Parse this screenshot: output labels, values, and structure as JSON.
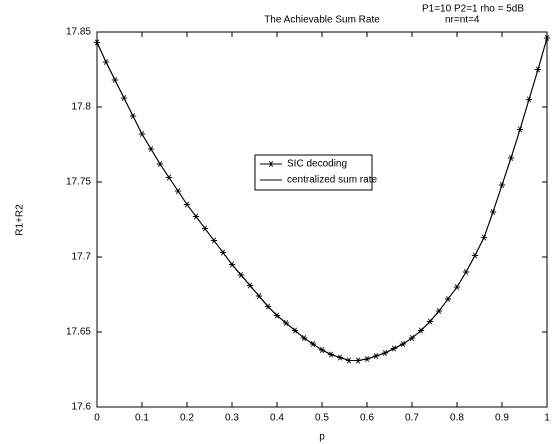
{
  "chart_data": {
    "type": "line",
    "title": "The Achievable Sum Rate",
    "annotations": [
      "P1=10 P2=1 rho = 5dB",
      "nr=nt=4"
    ],
    "x_label": "p",
    "y_label": "R1+R2",
    "x": [
      0,
      0.02,
      0.04,
      0.06,
      0.08,
      0.1,
      0.12,
      0.14,
      0.16,
      0.18,
      0.2,
      0.22,
      0.24,
      0.26,
      0.28,
      0.3,
      0.32,
      0.34,
      0.36,
      0.38,
      0.4,
      0.42,
      0.44,
      0.46,
      0.48,
      0.5,
      0.52,
      0.54,
      0.56,
      0.58,
      0.6,
      0.62,
      0.64,
      0.66,
      0.68,
      0.7,
      0.72,
      0.74,
      0.76,
      0.78,
      0.8,
      0.82,
      0.84,
      0.86,
      0.88,
      0.9,
      0.92,
      0.94,
      0.96,
      0.98,
      1
    ],
    "series": [
      {
        "name": "SIC decoding",
        "color": "#000000",
        "marker": "star",
        "values": [
          17.843,
          17.83,
          17.818,
          17.806,
          17.794,
          17.782,
          17.772,
          17.762,
          17.753,
          17.744,
          17.735,
          17.727,
          17.719,
          17.711,
          17.703,
          17.695,
          17.688,
          17.681,
          17.674,
          17.667,
          17.661,
          17.656,
          17.651,
          17.646,
          17.642,
          17.638,
          17.635,
          17.633,
          17.631,
          17.631,
          17.632,
          17.634,
          17.636,
          17.639,
          17.642,
          17.646,
          17.651,
          17.657,
          17.664,
          17.672,
          17.68,
          17.69,
          17.701,
          17.713,
          17.73,
          17.748,
          17.766,
          17.785,
          17.805,
          17.825,
          17.846
        ]
      },
      {
        "name": "centralized sum rate",
        "color": "#000000",
        "marker": "none",
        "values": [
          17.843,
          17.83,
          17.818,
          17.806,
          17.794,
          17.782,
          17.772,
          17.762,
          17.753,
          17.744,
          17.735,
          17.727,
          17.719,
          17.711,
          17.703,
          17.695,
          17.688,
          17.681,
          17.674,
          17.667,
          17.661,
          17.656,
          17.651,
          17.646,
          17.642,
          17.638,
          17.635,
          17.633,
          17.631,
          17.631,
          17.632,
          17.634,
          17.636,
          17.639,
          17.642,
          17.646,
          17.651,
          17.657,
          17.664,
          17.672,
          17.68,
          17.69,
          17.701,
          17.713,
          17.73,
          17.748,
          17.766,
          17.785,
          17.805,
          17.825,
          17.846
        ]
      }
    ],
    "xlim": [
      0,
      1
    ],
    "xticks": [
      0,
      0.1,
      0.2,
      0.3,
      0.4,
      0.5,
      0.6,
      0.7,
      0.8,
      0.9,
      1
    ],
    "ylim": [
      17.6,
      17.85
    ],
    "yticks": [
      17.6,
      17.65,
      17.7,
      17.75,
      17.8,
      17.85
    ],
    "grid": false
  }
}
